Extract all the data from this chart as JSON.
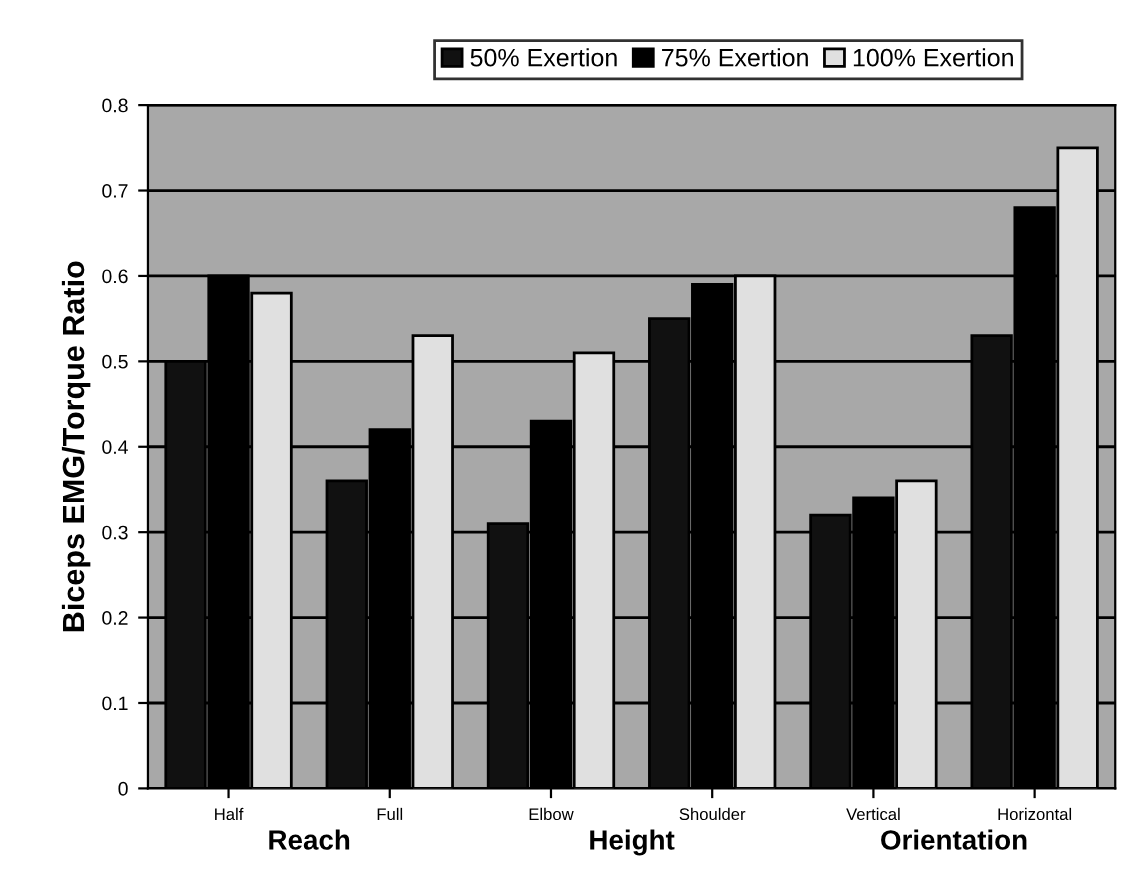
{
  "chart_data": {
    "type": "bar",
    "ylabel": "Biceps EMG/Torque Ratio",
    "categories": [
      "Half",
      "Full",
      "Elbow",
      "Shoulder",
      "Vertical",
      "Horizontal"
    ],
    "series": [
      {
        "name": "50% Exertion",
        "color": "#111111",
        "values": [
          0.5,
          0.36,
          0.31,
          0.55,
          0.32,
          0.53
        ]
      },
      {
        "name": "75% Exertion",
        "color": "#000000",
        "values": [
          0.6,
          0.42,
          0.43,
          0.59,
          0.34,
          0.68
        ]
      },
      {
        "name": "100% Exertion",
        "color": "#e0e0e0",
        "values": [
          0.58,
          0.53,
          0.51,
          0.6,
          0.36,
          0.75
        ]
      }
    ],
    "annotations": [
      "Reach",
      "Height",
      "Orientation"
    ],
    "ylim": [
      0,
      0.8
    ],
    "yticks": [
      {
        "value": 0,
        "label": "0"
      },
      0.1,
      0.2,
      0.3,
      0.4,
      0.5,
      0.6,
      0.7,
      0.8
    ],
    "grid": "y",
    "legend": "top"
  }
}
